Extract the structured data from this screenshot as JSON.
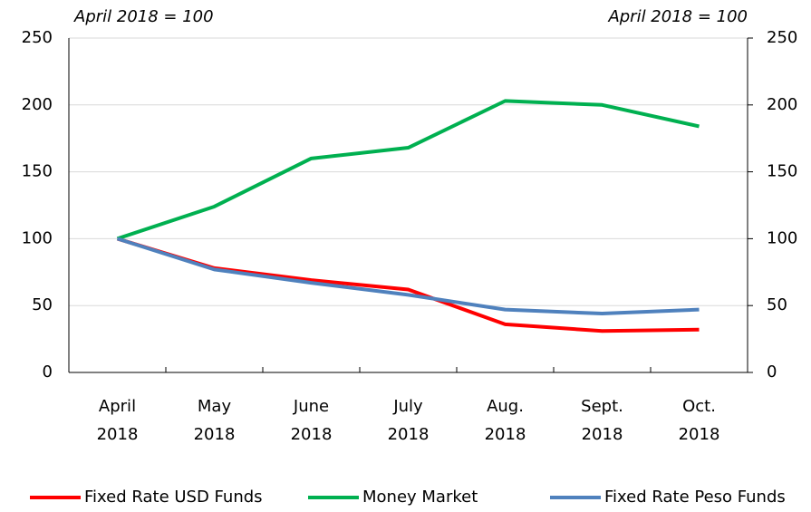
{
  "chart_data": {
    "type": "line",
    "annotations": [
      "April 2018 = 100",
      "April 2018 = 100"
    ],
    "categories": [
      "April 2018",
      "May 2018",
      "June 2018",
      "July 2018",
      "Aug. 2018",
      "Sept. 2018",
      "Oct. 2018"
    ],
    "series": [
      {
        "name": "Fixed Rate USD Funds",
        "color": "#ff0000",
        "values": [
          100,
          78,
          69,
          62,
          36,
          31,
          32
        ]
      },
      {
        "name": "Money Market",
        "color": "#00b050",
        "values": [
          100,
          124,
          160,
          168,
          203,
          200,
          184
        ]
      },
      {
        "name": "Fixed Rate Peso Funds",
        "color": "#4f81bd",
        "values": [
          100,
          77,
          67,
          58,
          47,
          44,
          47
        ]
      }
    ],
    "ylim": [
      0,
      250
    ],
    "yticks": [
      0,
      50,
      100,
      150,
      200,
      250
    ],
    "y2lim": [
      0,
      250
    ],
    "y2ticks": [
      0,
      50,
      100,
      150,
      200,
      250
    ],
    "grid": true,
    "legend": "bottom"
  }
}
